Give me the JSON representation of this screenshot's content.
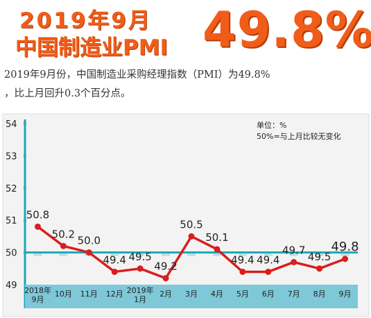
{
  "header": {
    "title_line1": "2019年9月",
    "title_line2": "中国制造业PMI",
    "headline_value": "49.8%"
  },
  "description": {
    "line1": "2019年9月份，中国制造业采购经理指数（PMI）为49.8%",
    "line2": "，比上月回升0.3个百分点。"
  },
  "chart_data": {
    "type": "line",
    "categories": [
      "2018年\n9月",
      "10月",
      "11月",
      "12月",
      "2019年\n1月",
      "2月",
      "3月",
      "4月",
      "5月",
      "6月",
      "7月",
      "8月",
      "9月"
    ],
    "series": [
      {
        "values": [
          50.8,
          50.2,
          50.0,
          49.4,
          49.5,
          49.2,
          50.5,
          50.1,
          49.4,
          49.4,
          49.7,
          49.5,
          49.8
        ]
      }
    ],
    "data_labels": [
      "50.8",
      "50.2",
      "50.0",
      "49.4",
      "49.5",
      "49.2",
      "50.5",
      "50.1",
      "49.4",
      "49.4",
      "49.7",
      "49.5",
      "49.8"
    ],
    "yticks": [
      49,
      50,
      51,
      52,
      53,
      54
    ],
    "ylim": [
      49,
      54
    ],
    "reference_line": 50,
    "annotations": [
      "单位：%",
      "50%=与上月比较无变化"
    ],
    "colors": {
      "line": "#d91e1e",
      "reference": "#1aa8b8",
      "axis_band": "#7ec8d8",
      "panel": "#f3f3f3",
      "tick_marker": "#3aa8c0"
    }
  }
}
